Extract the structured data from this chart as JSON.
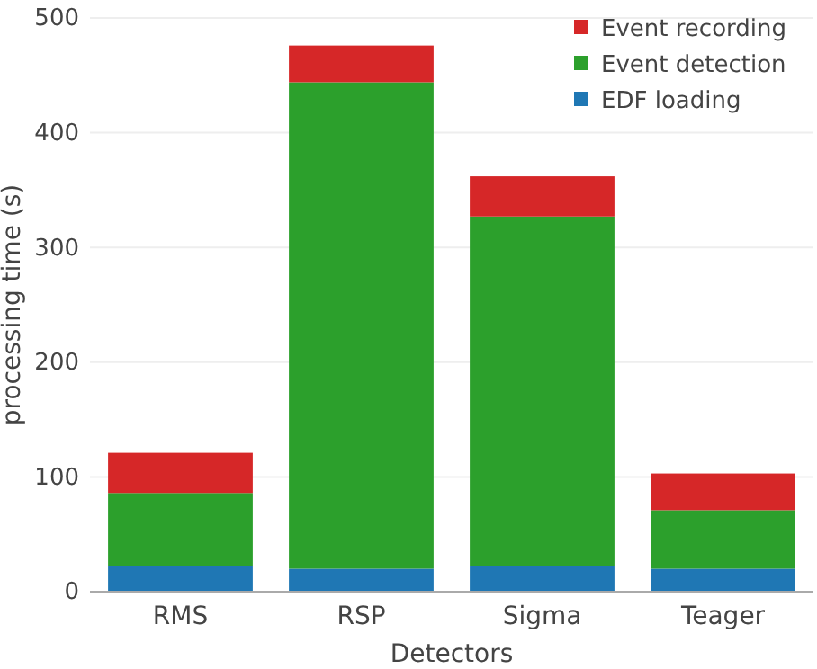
{
  "chart_data": {
    "type": "bar",
    "stacked": true,
    "xlabel": "Detectors",
    "ylabel": "processing time (s)",
    "categories": [
      "RMS",
      "RSP",
      "Sigma",
      "Teager"
    ],
    "series": [
      {
        "name": "EDF loading",
        "color": "#1f77b4",
        "values": [
          22,
          20,
          22,
          20
        ]
      },
      {
        "name": "Event detection",
        "color": "#2ca02c",
        "values": [
          64,
          424,
          305,
          51
        ]
      },
      {
        "name": "Event recording",
        "color": "#d62728",
        "values": [
          35,
          32,
          35,
          32
        ]
      }
    ],
    "ylim": [
      0,
      500
    ],
    "yticks": [
      0,
      100,
      200,
      300,
      400,
      500
    ],
    "grid": "y",
    "legend": "top right"
  }
}
